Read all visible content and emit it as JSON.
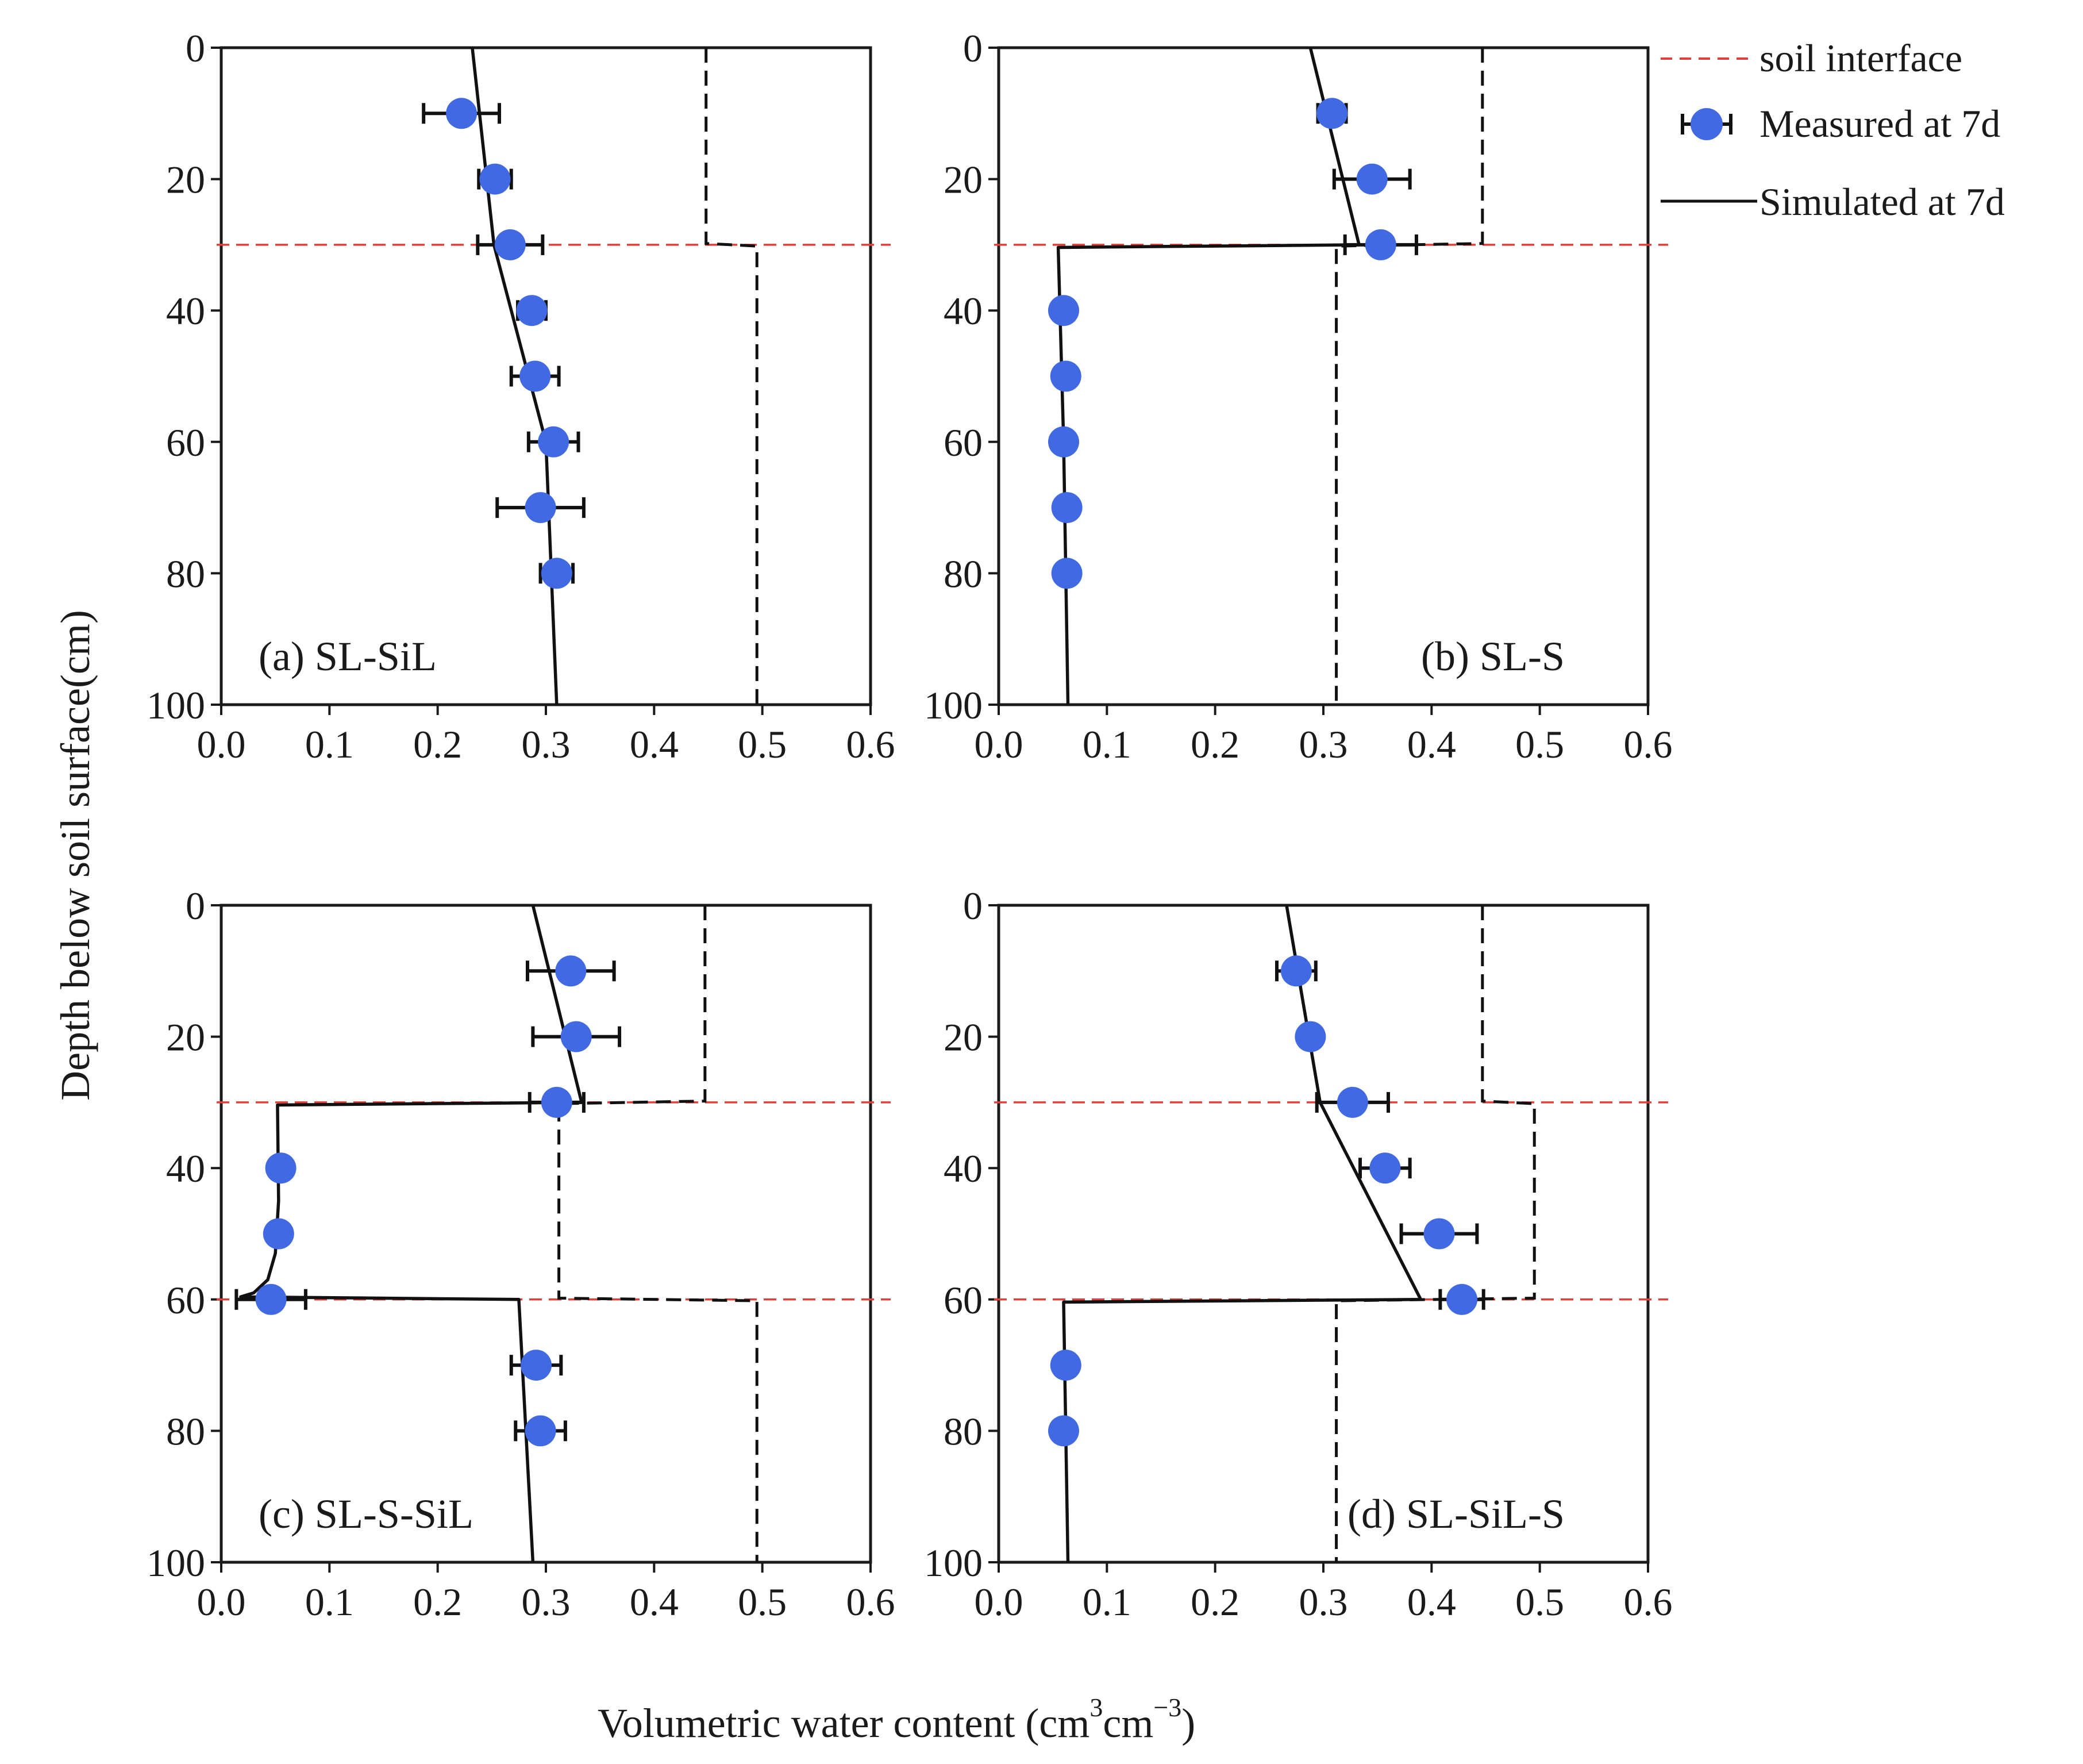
{
  "chart_data": {
    "type": "line",
    "axis_labels": {
      "xlabel": "Volumetric water content (cm",
      "x_unit_mid": "cm",
      "x_unit_end": ")",
      "x_sup1": "3",
      "x_sup2": "−3",
      "ylabel": "Depth below soil surface(cm)"
    },
    "legend": {
      "position": "top-right",
      "entries": [
        {
          "label": "soil interface",
          "style": "red-dashed"
        },
        {
          "label": "Measured at 7d",
          "style": "blue-marker-errorbar"
        },
        {
          "label": "Simulated at 7d",
          "style": "black-solid"
        }
      ]
    },
    "x_ticks": [
      "0.0",
      "0.1",
      "0.2",
      "0.3",
      "0.4",
      "0.5",
      "0.6"
    ],
    "y_ticks": [
      "0",
      "20",
      "40",
      "60",
      "80",
      "100"
    ],
    "colors": {
      "measured": "#4169e1",
      "simulated": "#111111",
      "interface": "#e0403a",
      "reference": "#111111"
    },
    "panels": [
      {
        "label": "(a) SL-SiL",
        "label_position": "bottom-left",
        "xlim": [
          0,
          0.6
        ],
        "ylim": [
          0,
          100
        ],
        "interfaces": [
          30
        ],
        "measured": [
          {
            "depth": 10,
            "theta": 0.222,
            "err": 0.035
          },
          {
            "depth": 20,
            "theta": 0.253,
            "err": 0.015
          },
          {
            "depth": 30,
            "theta": 0.267,
            "err": 0.03
          },
          {
            "depth": 40,
            "theta": 0.287,
            "err": 0.013
          },
          {
            "depth": 50,
            "theta": 0.29,
            "err": 0.022
          },
          {
            "depth": 60,
            "theta": 0.307,
            "err": 0.023
          },
          {
            "depth": 70,
            "theta": 0.295,
            "err": 0.04
          },
          {
            "depth": 80,
            "theta": 0.31,
            "err": 0.015
          }
        ],
        "simulated": [
          {
            "depth": 0,
            "theta": 0.232
          },
          {
            "depth": 30,
            "theta": 0.252
          },
          {
            "depth": 60,
            "theta": 0.3
          },
          {
            "depth": 100,
            "theta": 0.31
          }
        ],
        "reference": [
          {
            "depth": 0,
            "theta": 0.448
          },
          {
            "depth": 29.8,
            "theta": 0.448
          },
          {
            "depth": 30.2,
            "theta": 0.495
          },
          {
            "depth": 100,
            "theta": 0.495
          }
        ]
      },
      {
        "label": "(b) SL-S",
        "label_position": "bottom-right",
        "xlim": [
          0,
          0.6
        ],
        "ylim": [
          0,
          100
        ],
        "interfaces": [
          30
        ],
        "measured": [
          {
            "depth": 10,
            "theta": 0.308,
            "err": 0.013
          },
          {
            "depth": 20,
            "theta": 0.345,
            "err": 0.035
          },
          {
            "depth": 30,
            "theta": 0.353,
            "err": 0.033
          },
          {
            "depth": 40,
            "theta": 0.06,
            "err": 0
          },
          {
            "depth": 50,
            "theta": 0.062,
            "err": 0
          },
          {
            "depth": 60,
            "theta": 0.06,
            "err": 0
          },
          {
            "depth": 70,
            "theta": 0.063,
            "err": 0
          },
          {
            "depth": 80,
            "theta": 0.063,
            "err": 0
          }
        ],
        "simulated": [
          {
            "depth": 0,
            "theta": 0.288
          },
          {
            "depth": 30,
            "theta": 0.333
          },
          {
            "depth": 30.4,
            "theta": 0.055
          },
          {
            "depth": 60,
            "theta": 0.06
          },
          {
            "depth": 100,
            "theta": 0.064
          }
        ],
        "reference": [
          {
            "depth": 0,
            "theta": 0.447
          },
          {
            "depth": 29.8,
            "theta": 0.447
          },
          {
            "depth": 30.2,
            "theta": 0.312
          },
          {
            "depth": 100,
            "theta": 0.312
          }
        ]
      },
      {
        "label": "(c) SL-S-SiL",
        "label_position": "bottom-left",
        "xlim": [
          0,
          0.6
        ],
        "ylim": [
          0,
          100
        ],
        "interfaces": [
          30,
          60
        ],
        "measured": [
          {
            "depth": 10,
            "theta": 0.323,
            "err": 0.04
          },
          {
            "depth": 20,
            "theta": 0.328,
            "err": 0.04
          },
          {
            "depth": 30,
            "theta": 0.31,
            "err": 0.025
          },
          {
            "depth": 40,
            "theta": 0.055,
            "err": 0
          },
          {
            "depth": 50,
            "theta": 0.053,
            "err": 0
          },
          {
            "depth": 60,
            "theta": 0.046,
            "err": 0.032
          },
          {
            "depth": 70,
            "theta": 0.291,
            "err": 0.023
          },
          {
            "depth": 80,
            "theta": 0.295,
            "err": 0.023
          }
        ],
        "simulated": [
          {
            "depth": 0,
            "theta": 0.288
          },
          {
            "depth": 30,
            "theta": 0.333
          },
          {
            "depth": 30.4,
            "theta": 0.052
          },
          {
            "depth": 45,
            "theta": 0.053
          },
          {
            "depth": 53,
            "theta": 0.05
          },
          {
            "depth": 57,
            "theta": 0.043
          },
          {
            "depth": 59,
            "theta": 0.03
          },
          {
            "depth": 59.6,
            "theta": 0.018
          },
          {
            "depth": 60,
            "theta": 0.275
          },
          {
            "depth": 100,
            "theta": 0.288
          }
        ],
        "reference": [
          {
            "depth": 0,
            "theta": 0.447
          },
          {
            "depth": 29.8,
            "theta": 0.447
          },
          {
            "depth": 30.2,
            "theta": 0.312
          },
          {
            "depth": 59.8,
            "theta": 0.312
          },
          {
            "depth": 60.2,
            "theta": 0.495
          },
          {
            "depth": 100,
            "theta": 0.495
          }
        ]
      },
      {
        "label": "(d) SL-SiL-S",
        "label_position": "bottom-right",
        "xlim": [
          0,
          0.6
        ],
        "ylim": [
          0,
          100
        ],
        "interfaces": [
          30,
          60
        ],
        "measured": [
          {
            "depth": 10,
            "theta": 0.275,
            "err": 0.018
          },
          {
            "depth": 20,
            "theta": 0.288,
            "err": 0
          },
          {
            "depth": 30,
            "theta": 0.327,
            "err": 0.033
          },
          {
            "depth": 40,
            "theta": 0.357,
            "err": 0.023
          },
          {
            "depth": 50,
            "theta": 0.407,
            "err": 0.035
          },
          {
            "depth": 60,
            "theta": 0.428,
            "err": 0.02
          },
          {
            "depth": 70,
            "theta": 0.062,
            "err": 0
          },
          {
            "depth": 80,
            "theta": 0.06,
            "err": 0
          }
        ],
        "simulated": [
          {
            "depth": 0,
            "theta": 0.266
          },
          {
            "depth": 30,
            "theta": 0.297
          },
          {
            "depth": 60,
            "theta": 0.39
          },
          {
            "depth": 60.4,
            "theta": 0.06
          },
          {
            "depth": 100,
            "theta": 0.064
          }
        ],
        "reference": [
          {
            "depth": 0,
            "theta": 0.447
          },
          {
            "depth": 29.8,
            "theta": 0.447
          },
          {
            "depth": 30.2,
            "theta": 0.495
          },
          {
            "depth": 59.8,
            "theta": 0.495
          },
          {
            "depth": 60.2,
            "theta": 0.312
          },
          {
            "depth": 100,
            "theta": 0.312
          }
        ]
      }
    ]
  }
}
